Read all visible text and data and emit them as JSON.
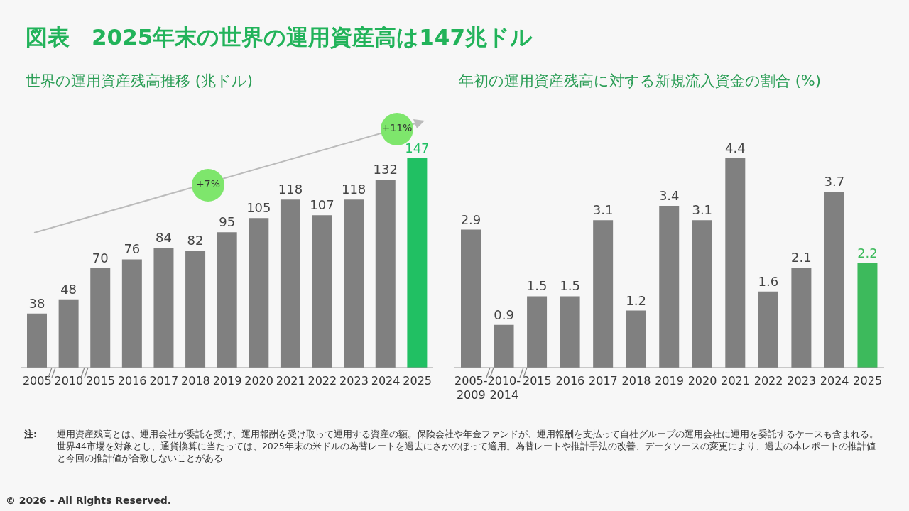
{
  "chart_data": [
    {
      "type": "bar",
      "title": "世界の運用資産残高推移 (兆ドル)",
      "categories": [
        "2005",
        "2010",
        "2015",
        "2016",
        "2017",
        "2018",
        "2019",
        "2020",
        "2021",
        "2022",
        "2023",
        "2024",
        "2025"
      ],
      "values": [
        38,
        48,
        70,
        76,
        84,
        82,
        95,
        105,
        118,
        107,
        118,
        132,
        147
      ],
      "colors": [
        "#808080",
        "#808080",
        "#808080",
        "#808080",
        "#808080",
        "#808080",
        "#808080",
        "#808080",
        "#808080",
        "#808080",
        "#808080",
        "#808080",
        "#21c063"
      ],
      "data_labels": true,
      "annotations": [
        "図表　2025年末の世界の運用資産高は147兆ドル",
        "+7%",
        "+11%",
        "注:",
        "運用資産残高とは、運用会社が委託を受け、運用報酬を受け取って運用する資産の額。保険会社や年金ファンドが、運用報酬を支払って自社グループの運用会社に運用を委託するケースも含まれる。世界44市場を対象とし、通貨換算に当たっては、2025年末の米ドルの為替レートを過去にさかのぼって適用。為替レートや推計手法の改善、データソースの変更により、過去の本レポートの推計値と今回の推計値が合致しないことがある",
        "© 2026 - All Rights Reserved."
      ]
    },
    {
      "type": "bar",
      "title": "年初の運用資産残高に対する新規流入資金の割合 (%)",
      "categories": [
        "2005-2009",
        "2010-2014",
        "2015",
        "2016",
        "2017",
        "2018",
        "2019",
        "2020",
        "2021",
        "2022",
        "2023",
        "2024",
        "2025"
      ],
      "values": [
        2.9,
        0.9,
        1.5,
        1.5,
        3.1,
        1.2,
        3.4,
        3.1,
        4.4,
        1.6,
        2.1,
        3.7,
        2.2
      ],
      "colors": [
        "#808080",
        "#808080",
        "#808080",
        "#808080",
        "#808080",
        "#808080",
        "#808080",
        "#808080",
        "#808080",
        "#808080",
        "#808080",
        "#808080",
        "#3dba5c"
      ],
      "data_labels": true
    }
  ]
}
